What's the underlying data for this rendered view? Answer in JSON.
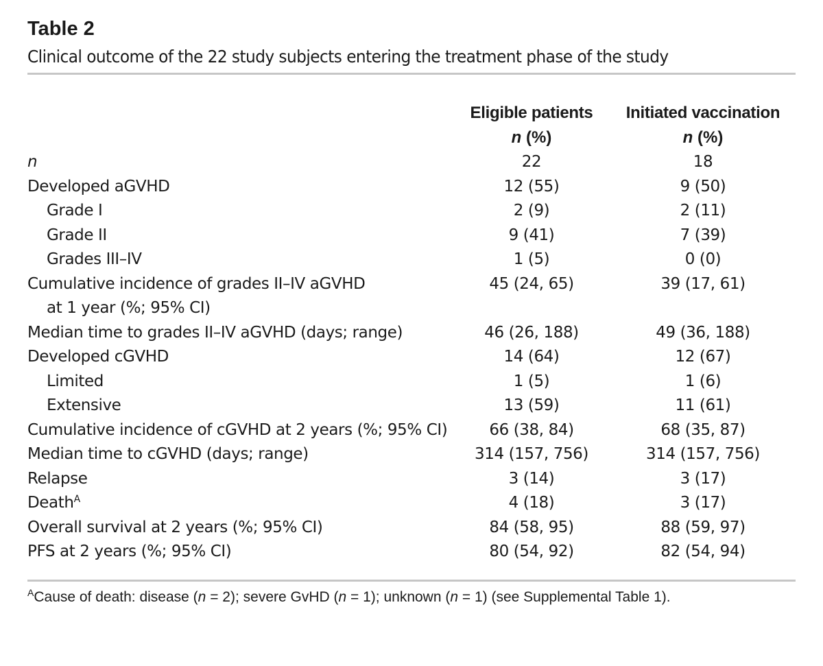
{
  "table": {
    "label": "Table 2",
    "caption": "Clinical outcome of the 22 study subjects entering the treatment phase of the study",
    "columns": [
      {
        "title": "Eligible patients",
        "subtitle_n": "n",
        "subtitle_rest": " (%)"
      },
      {
        "title": "Initiated vaccination",
        "subtitle_n": "n",
        "subtitle_rest": " (%)"
      }
    ],
    "rows": [
      {
        "label": "n",
        "eligible": "22",
        "vaccinated": "18"
      },
      {
        "label": "Developed aGVHD",
        "eligible": "12 (55)",
        "vaccinated": "9 (50)"
      },
      {
        "label": "Grade I",
        "eligible": "2 (9)",
        "vaccinated": "2 (11)"
      },
      {
        "label": "Grade II",
        "eligible": "9 (41)",
        "vaccinated": "7 (39)"
      },
      {
        "label": "Grades III–IV",
        "eligible": "1 (5)",
        "vaccinated": "0 (0)"
      },
      {
        "label": "Cumulative incidence of grades II–IV aGVHD",
        "eligible": "45 (24, 65)",
        "vaccinated": "39 (17, 61)"
      },
      {
        "label": "at 1 year (%; 95% CI)"
      },
      {
        "label": "Median time to grades II–IV aGVHD (days; range)",
        "eligible": "46 (26, 188)",
        "vaccinated": "49 (36, 188)"
      },
      {
        "label": "Developed cGVHD",
        "eligible": "14 (64)",
        "vaccinated": "12 (67)"
      },
      {
        "label": "Limited",
        "eligible": "1 (5)",
        "vaccinated": "1 (6)"
      },
      {
        "label": "Extensive",
        "eligible": "13 (59)",
        "vaccinated": "11 (61)"
      },
      {
        "label": "Cumulative incidence of cGVHD at 2 years (%; 95% CI)",
        "eligible": "66 (38, 84)",
        "vaccinated": "68 (35, 87)"
      },
      {
        "label": "Median time to cGVHD (days; range)",
        "eligible": "314 (157, 756)",
        "vaccinated": "314 (157, 756)"
      },
      {
        "label": "Relapse",
        "eligible": "3 (14)",
        "vaccinated": "3 (17)"
      },
      {
        "label": "Death",
        "label_sup": "A",
        "eligible": "4 (18)",
        "vaccinated": "3 (17)"
      },
      {
        "label": "Overall survival at 2 years (%; 95% CI)",
        "eligible": "84 (58, 95)",
        "vaccinated": "88 (59, 97)"
      },
      {
        "label": "PFS at 2 years (%; 95% CI)",
        "eligible": "80 (54, 92)",
        "vaccinated": "82 (54, 94)"
      }
    ],
    "footnote": {
      "marker": "A",
      "parts": [
        "Cause of death: disease (",
        "n",
        " = 2); severe GvHD (",
        "n",
        " = 1); unknown (",
        "n",
        " = 1) (see Supplemental Table 1)."
      ]
    }
  }
}
